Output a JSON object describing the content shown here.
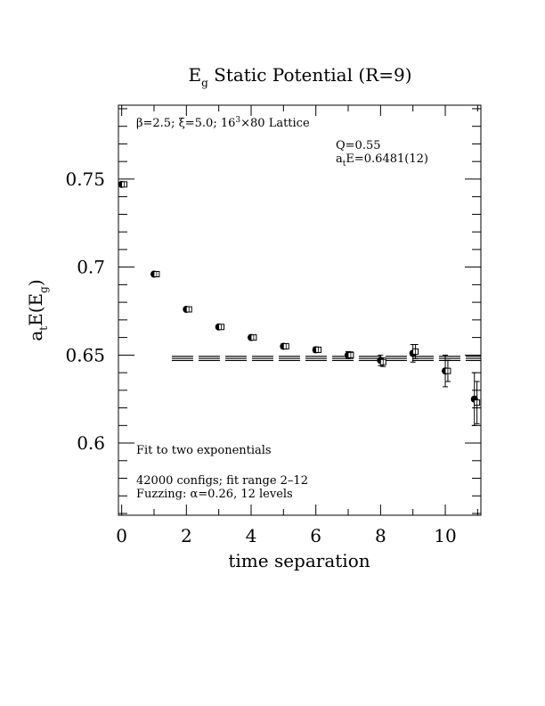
{
  "chart_data": {
    "type": "scatter",
    "title_main": "E",
    "title_sub": "g",
    "title_rest": " Static Potential (R=9)",
    "xlabel": "time separation",
    "ylabel_main": "a",
    "ylabel_sub1": "t",
    "ylabel_mid": "E(E",
    "ylabel_sub2": "g",
    "ylabel_end": ")",
    "xlim": [
      -0.1,
      11.1
    ],
    "ylim": [
      0.559,
      0.792
    ],
    "x_ticks": [
      0,
      2,
      4,
      6,
      8,
      10
    ],
    "x_tick_labels": [
      "0",
      "2",
      "4",
      "6",
      "8",
      "10"
    ],
    "y_ticks": [
      0.6,
      0.65,
      0.7,
      0.75
    ],
    "y_tick_labels": [
      "0.6",
      "0.65",
      "0.7",
      "0.75"
    ],
    "lattice_text_a": "β=2.5; ξ=5.0; 16",
    "lattice_text_sup": "3",
    "lattice_text_b": "×80 Lattice",
    "q_text": "Q=0.55",
    "ae_text_main": "a",
    "ae_text_sub": "t",
    "ae_text_rest": "E=0.6481(12)",
    "fit_text": "Fit to two exponentials",
    "configs_text": "42000 configs; fit range 2–12",
    "fuzzing_text": "Fuzzing: α=0.26, 12 levels",
    "fit": {
      "value": 0.6481,
      "error": 0.0012,
      "x_start": 1.55,
      "x_end": 11.1
    },
    "series": [
      {
        "marker": "filled-circle",
        "points": [
          {
            "x": 0,
            "y": 0.747,
            "err": 0.0008
          },
          {
            "x": 1,
            "y": 0.696,
            "err": 0.001
          },
          {
            "x": 2,
            "y": 0.676,
            "err": 0.001
          },
          {
            "x": 3,
            "y": 0.666,
            "err": 0.001
          },
          {
            "x": 4,
            "y": 0.66,
            "err": 0.0012
          },
          {
            "x": 5,
            "y": 0.655,
            "err": 0.0014
          },
          {
            "x": 6,
            "y": 0.653,
            "err": 0.0016
          },
          {
            "x": 7,
            "y": 0.65,
            "err": 0.002
          },
          {
            "x": 8,
            "y": 0.647,
            "err": 0.003
          },
          {
            "x": 9,
            "y": 0.651,
            "err": 0.005
          },
          {
            "x": 10,
            "y": 0.641,
            "err": 0.009
          },
          {
            "x": 10.9,
            "y": 0.625,
            "err": 0.015
          }
        ]
      },
      {
        "marker": "open-square",
        "points": [
          {
            "x": 0.08,
            "y": 0.747,
            "err": 0.0007
          },
          {
            "x": 1.08,
            "y": 0.696,
            "err": 0.0008
          },
          {
            "x": 2.08,
            "y": 0.676,
            "err": 0.0008
          },
          {
            "x": 3.08,
            "y": 0.666,
            "err": 0.0009
          },
          {
            "x": 4.08,
            "y": 0.66,
            "err": 0.001
          },
          {
            "x": 5.08,
            "y": 0.655,
            "err": 0.0012
          },
          {
            "x": 6.08,
            "y": 0.653,
            "err": 0.0014
          },
          {
            "x": 7.08,
            "y": 0.65,
            "err": 0.0018
          },
          {
            "x": 8.08,
            "y": 0.646,
            "err": 0.0025
          },
          {
            "x": 9.08,
            "y": 0.652,
            "err": 0.004
          },
          {
            "x": 10.08,
            "y": 0.641,
            "err": 0.006
          },
          {
            "x": 10.98,
            "y": 0.623,
            "err": 0.012
          }
        ]
      }
    ]
  }
}
